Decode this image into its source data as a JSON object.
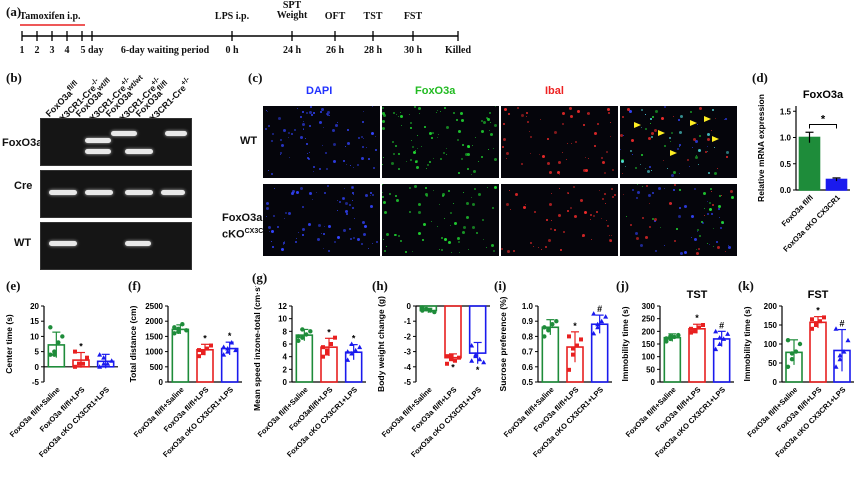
{
  "panel_labels": {
    "a": "(a)",
    "b": "(b)",
    "c": "(c)",
    "d": "(d)",
    "e": "(e)",
    "f": "(f)",
    "g": "(g)",
    "h": "(h)",
    "i": "(i)",
    "j": "(j)",
    "k": "(k)"
  },
  "timeline": {
    "tamoxifen_label": "Tamoxifen i.p.",
    "days": [
      "1",
      "2",
      "3",
      "4",
      "5 day"
    ],
    "waiting": "6-day waiting period",
    "events": [
      {
        "top": "LPS i.p.",
        "bottom": "0 h"
      },
      {
        "top": "SPT\nWeight",
        "bottom": "24 h"
      },
      {
        "top": "OFT",
        "bottom": "26 h"
      },
      {
        "top": "TST",
        "bottom": "28 h"
      },
      {
        "top": "FST",
        "bottom": "30 h"
      },
      {
        "top": "",
        "bottom": "Killed"
      }
    ]
  },
  "gel": {
    "rows": [
      "FoxO3a",
      "Cre",
      "WT"
    ],
    "columns": [
      {
        "line1": "FoxO3a",
        "sup1": "fl/fl",
        "line2": "CX3CR1-Cre",
        "sup2": "-/-"
      },
      {
        "line1": "FoxO3a",
        "sup1": "wt/fl",
        "line2": "CX3CR1-Cre",
        "sup2": "+/-"
      },
      {
        "line1": "FoxO3a",
        "sup1": "wt/wt",
        "line2": "CX3CR1-Cre",
        "sup2": "+/-"
      },
      {
        "line1": "FoxO3a",
        "sup1": "fl/fl",
        "line2": "CX3CR1-Cre",
        "sup2": "+/-"
      }
    ]
  },
  "microscopy": {
    "channels": [
      "DAPI",
      "FoxO3a",
      "Ibal",
      ""
    ],
    "channel_colors": [
      "#2233ff",
      "#22cc22",
      "#ee2222",
      "#ffffff"
    ],
    "rows": [
      {
        "label": "WT",
        "label2": ""
      },
      {
        "label": "FoxO3a",
        "label2": "cKO",
        "sup": "CX3CR1"
      }
    ]
  },
  "chart_data": [
    {
      "id": "d",
      "type": "bar",
      "title": "FoxO3a",
      "ylabel": "Relative mRNA expression",
      "categories": [
        "FoxO3a fl/fl",
        "FoxO3a cKO CX3CR1"
      ],
      "values": [
        1.0,
        0.2
      ],
      "errors": [
        0.1,
        0.03
      ],
      "ylim": [
        0,
        1.6
      ],
      "yticks": [
        "0.0",
        "0.5",
        "1.0",
        "1.5"
      ],
      "colors": [
        "#1e8c3a",
        "#1a1aee"
      ],
      "annotation": "*",
      "style": "filled"
    },
    {
      "id": "e",
      "type": "bar",
      "title": "",
      "ylabel": "Center time (s)",
      "categories": [
        "FoxO3a fl/fl+Saline",
        "FoxO3a fl/fl+LPS",
        "FoxO3a cKO CX3CR1+LPS"
      ],
      "values": [
        7.2,
        2.2,
        1.8
      ],
      "errors": [
        4.2,
        2.5,
        2.3
      ],
      "ylim": [
        -5,
        20
      ],
      "yticks": [
        "-5",
        "0",
        "5",
        "10",
        "15",
        "20"
      ],
      "colors": [
        "#1e8c3a",
        "#e82020",
        "#1a1aee"
      ],
      "annotations": [
        "",
        "*",
        ""
      ],
      "points": [
        [
          4,
          5,
          8,
          10,
          13,
          4
        ],
        [
          0,
          1,
          1,
          3,
          5,
          1
        ],
        [
          0,
          1,
          1,
          2,
          4,
          3
        ]
      ],
      "style": "open"
    },
    {
      "id": "f",
      "type": "bar",
      "title": "",
      "ylabel": "Total distance (cm)",
      "categories": [
        "FoxO3a fl/fl+Saline",
        "FoxO3a fl/fl+LPS",
        "FoxO3a cKO CX3CR1+LPS"
      ],
      "values": [
        1730,
        1060,
        1100
      ],
      "errors": [
        150,
        180,
        210
      ],
      "ylim": [
        0,
        2500
      ],
      "yticks": [
        "0",
        "500",
        "1000",
        "1500",
        "2000",
        "2500"
      ],
      "colors": [
        "#1e8c3a",
        "#e82020",
        "#1a1aee"
      ],
      "annotations": [
        "",
        "*",
        "*"
      ],
      "points": [
        [
          1600,
          1750,
          1900,
          1700,
          1800,
          1650
        ],
        [
          850,
          1000,
          1100,
          1200,
          1050,
          950
        ],
        [
          900,
          1100,
          1300,
          1050,
          1150,
          1000
        ]
      ],
      "style": "open"
    },
    {
      "id": "g",
      "type": "bar",
      "title": "",
      "ylabel": "Mean speed inzone-total (cm·s⁻¹)",
      "categories": [
        "FoxO3a fl/fl+Saline",
        "FoxO3afl/fl+LPS",
        "FoxO3a cKO CX3CR1+LPS"
      ],
      "values": [
        7.4,
        5.5,
        4.7
      ],
      "errors": [
        0.9,
        1.4,
        1.2
      ],
      "ylim": [
        0,
        12
      ],
      "yticks": [
        "0",
        "2",
        "4",
        "6",
        "8",
        "10",
        "12"
      ],
      "colors": [
        "#1e8c3a",
        "#e82020",
        "#1a1aee"
      ],
      "annotations": [
        "",
        "*",
        "*"
      ],
      "points": [
        [
          6.5,
          7,
          7.5,
          8,
          7.2,
          8.3
        ],
        [
          4,
          5,
          6,
          7,
          5.5,
          4.5
        ],
        [
          3.5,
          4.5,
          5,
          5.5,
          4.8,
          6
        ]
      ],
      "style": "open"
    },
    {
      "id": "h",
      "type": "bar",
      "title": "",
      "ylabel": "Body weight change (g)",
      "categories": [
        "FoxO3a fl/fl+Saline",
        "FoxO3a fl/fl+LPS",
        "FoxO3a cKO CX3CR1+LPS"
      ],
      "values": [
        -0.3,
        -3.4,
        -3.1
      ],
      "errors": [
        0.15,
        0.25,
        0.7
      ],
      "ylim": [
        -5,
        0
      ],
      "yticks": [
        "0",
        "-1",
        "-2",
        "-3",
        "-4",
        "-5"
      ],
      "colors": [
        "#1e8c3a",
        "#e82020",
        "#1a1aee"
      ],
      "annotations": [
        "",
        "*",
        "*"
      ],
      "points": [
        [
          -0.1,
          -0.2,
          -0.3,
          -0.4,
          -0.3,
          -0.2
        ],
        [
          -3.3,
          -3.5,
          -3.6,
          -3.4,
          -3.8,
          -3.3
        ],
        [
          -2.6,
          -3.2,
          -3.5,
          -3.7,
          -3.6,
          -3.3
        ]
      ],
      "style": "open"
    },
    {
      "id": "i",
      "type": "bar",
      "title": "",
      "ylabel": "Sucrose preference (%)",
      "categories": [
        "FoxO3a fl/fl+Saline",
        "FoxO3a fl/fl+LPS",
        "FoxO3a cKO CX3CR1+LPS"
      ],
      "values": [
        0.86,
        0.73,
        0.88
      ],
      "errors": [
        0.05,
        0.1,
        0.06
      ],
      "ylim": [
        0.5,
        1.0
      ],
      "yticks": [
        "0.5",
        "0.6",
        "0.7",
        "0.8",
        "0.9",
        "1.0"
      ],
      "colors": [
        "#1e8c3a",
        "#e82020",
        "#1a1aee"
      ],
      "annotations": [
        "",
        "*",
        "#"
      ],
      "points": [
        [
          0.8,
          0.85,
          0.88,
          0.9,
          0.86,
          0.84
        ],
        [
          0.58,
          0.68,
          0.74,
          0.78,
          0.8,
          0.72
        ],
        [
          0.82,
          0.86,
          0.9,
          0.93,
          0.95,
          0.88
        ]
      ],
      "style": "open"
    },
    {
      "id": "j",
      "type": "bar",
      "title": "TST",
      "ylabel": "Immobility time (s)",
      "categories": [
        "FoxO3a fl/fl+Saline",
        "FoxO3a fl/fl+LPS",
        "FoxO3a cKO CX3CR1+LPS"
      ],
      "values": [
        175,
        210,
        170
      ],
      "errors": [
        15,
        18,
        30
      ],
      "ylim": [
        0,
        300
      ],
      "yticks": [
        "0",
        "50",
        "100",
        "150",
        "200",
        "250",
        "300"
      ],
      "colors": [
        "#1e8c3a",
        "#e82020",
        "#1a1aee"
      ],
      "annotations": [
        "",
        "*",
        "#"
      ],
      "points": [
        [
          160,
          170,
          178,
          185,
          172,
          180
        ],
        [
          195,
          205,
          215,
          225,
          210,
          200
        ],
        [
          130,
          150,
          170,
          190,
          200,
          175
        ]
      ],
      "style": "open"
    },
    {
      "id": "k",
      "type": "bar",
      "title": "FST",
      "ylabel": "Immobility time (s)",
      "categories": [
        "FoxO3a fl/fl+Saline",
        "FoxO3a fl/fl+LPS",
        "FoxO3a cKO CX3CR1+LPS"
      ],
      "values": [
        78,
        157,
        83
      ],
      "errors": [
        33,
        15,
        55
      ],
      "ylim": [
        0,
        200
      ],
      "yticks": [
        "0",
        "50",
        "100",
        "150",
        "200"
      ],
      "colors": [
        "#1e8c3a",
        "#e82020",
        "#1a1aee"
      ],
      "annotations": [
        "",
        "*",
        "#"
      ],
      "points": [
        [
          40,
          60,
          80,
          100,
          110,
          75
        ],
        [
          140,
          150,
          160,
          170,
          165,
          155
        ],
        [
          40,
          60,
          80,
          110,
          140,
          70
        ]
      ],
      "style": "open"
    }
  ]
}
